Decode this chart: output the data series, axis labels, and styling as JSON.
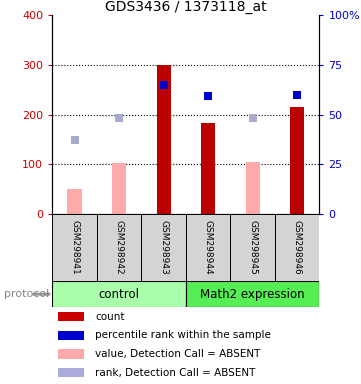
{
  "title": "GDS3436 / 1373118_at",
  "samples": [
    "GSM298941",
    "GSM298942",
    "GSM298943",
    "GSM298944",
    "GSM298945",
    "GSM298946"
  ],
  "bar_values": [
    null,
    null,
    300,
    184,
    null,
    216
  ],
  "bar_absent_values": [
    50,
    103,
    null,
    null,
    105,
    null
  ],
  "blue_dot_values": [
    null,
    null,
    260,
    237,
    null,
    240
  ],
  "blue_absent_dot_values": [
    148,
    193,
    null,
    null,
    193,
    null
  ],
  "bar_color": "#bb0000",
  "bar_absent_color": "#ffaaaa",
  "blue_dot_color": "#0000cc",
  "blue_absent_dot_color": "#aaaacc",
  "ylim": [
    0,
    400
  ],
  "y2lim": [
    0,
    100
  ],
  "yticks": [
    0,
    100,
    200,
    300,
    400
  ],
  "ytick_labels": [
    "0",
    "100",
    "200",
    "300",
    "400"
  ],
  "y2ticks": [
    0,
    25,
    50,
    75,
    100
  ],
  "y2tick_labels": [
    "0",
    "25",
    "50",
    "75",
    "100%"
  ],
  "group_labels": [
    "control",
    "Math2 expression"
  ],
  "group_boundaries": [
    0,
    3,
    6
  ],
  "group_colors": [
    "#aaffaa",
    "#55ee55"
  ],
  "legend_items": [
    {
      "label": "count",
      "color": "#cc0000"
    },
    {
      "label": "percentile rank within the sample",
      "color": "#0000cc"
    },
    {
      "label": "value, Detection Call = ABSENT",
      "color": "#ffaaaa"
    },
    {
      "label": "rank, Detection Call = ABSENT",
      "color": "#aaaadd"
    }
  ],
  "protocol_label": "protocol",
  "ylabel_color_left": "#cc0000",
  "ylabel_color_right": "#0000cc",
  "title_fontsize": 10,
  "tick_fontsize": 8,
  "sample_fontsize": 6.5,
  "legend_fontsize": 7.5,
  "group_fontsize": 8.5,
  "background_color": "#ffffff"
}
